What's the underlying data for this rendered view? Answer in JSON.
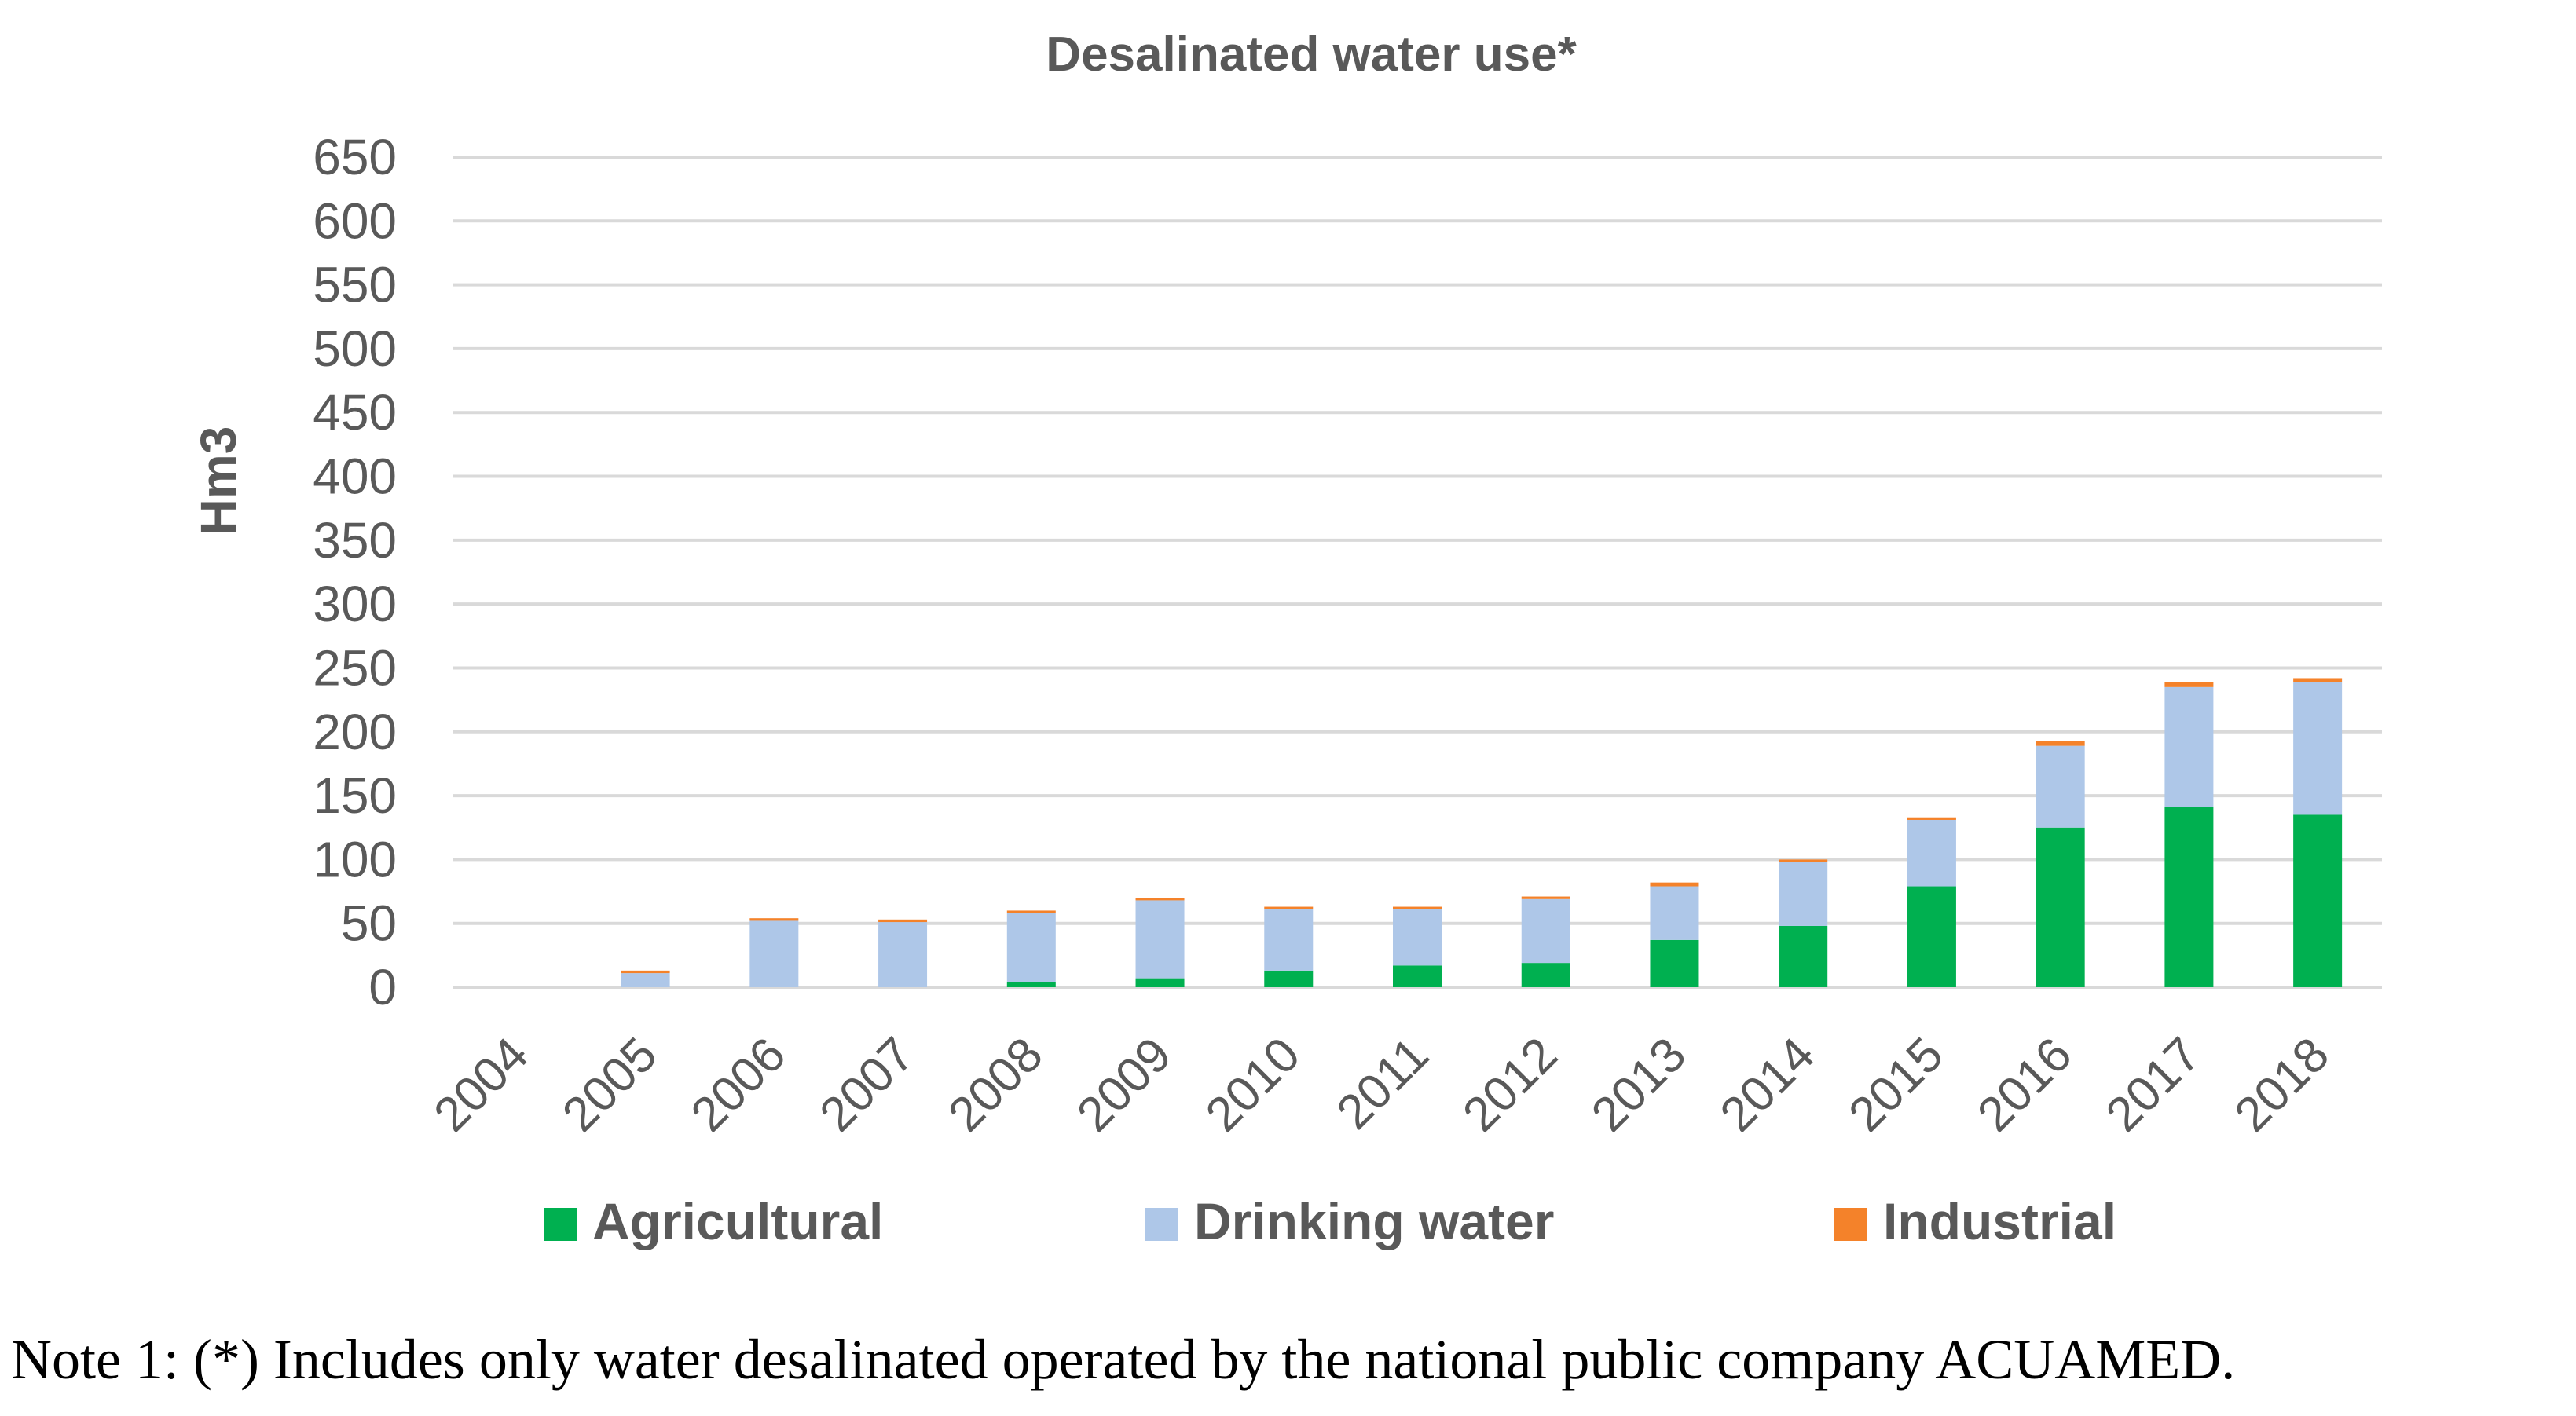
{
  "chart_data": {
    "type": "bar",
    "stacked": true,
    "title": "Desalinated water use*",
    "xlabel": "",
    "ylabel": "Hm3",
    "ylim": [
      0,
      650
    ],
    "yticks": [
      0,
      50,
      100,
      150,
      200,
      250,
      300,
      350,
      400,
      450,
      500,
      550,
      600,
      650
    ],
    "grid": true,
    "legend_position": "bottom",
    "categories": [
      "2004",
      "2005",
      "2006",
      "2007",
      "2008",
      "2009",
      "2010",
      "2011",
      "2012",
      "2013",
      "2014",
      "2015",
      "2016",
      "2017",
      "2018"
    ],
    "series": [
      {
        "name": "Agricultural",
        "color": "#00b050",
        "values": [
          0,
          0,
          0,
          0,
          4,
          7,
          13,
          17,
          19,
          37,
          48,
          79,
          125,
          141,
          135
        ]
      },
      {
        "name": "Drinking water",
        "color": "#aec7e8",
        "values": [
          0,
          11,
          52,
          51,
          54,
          61,
          48,
          44,
          50,
          42,
          50,
          52,
          64,
          94,
          104
        ]
      },
      {
        "name": "Industrial",
        "color": "#f4822a",
        "values": [
          0,
          2,
          2,
          2,
          2,
          2,
          2,
          2,
          2,
          3,
          2,
          2,
          4,
          4,
          3
        ]
      }
    ]
  },
  "note": "Note 1: (*) Includes only water desalinated operated by the national public company ACUAMED."
}
